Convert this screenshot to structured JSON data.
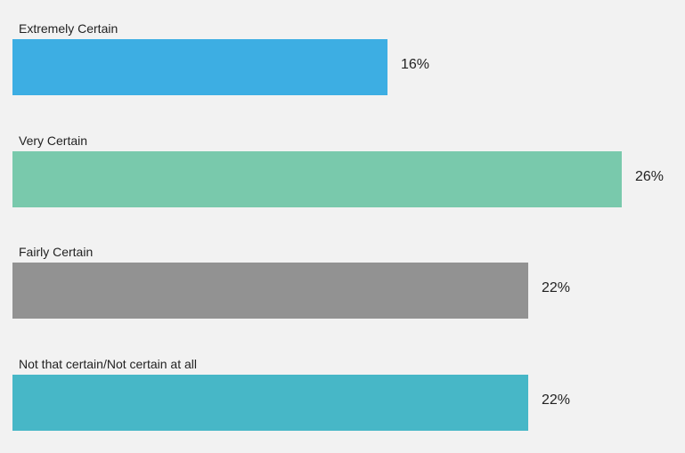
{
  "chart_data": {
    "type": "bar",
    "orientation": "horizontal",
    "categories": [
      "Extremely Certain",
      "Very Certain",
      "Fairly Certain",
      "Not that certain/Not certain at all"
    ],
    "values": [
      16,
      26,
      22,
      22
    ],
    "value_labels": [
      "16%",
      "26%",
      "22%",
      "22%"
    ],
    "colors": [
      "#3daee3",
      "#79c9ac",
      "#929292",
      "#47b7c7"
    ],
    "xlim": [
      0,
      26
    ],
    "title": "",
    "xlabel": "",
    "ylabel": "",
    "grid": false,
    "legend": "none"
  }
}
